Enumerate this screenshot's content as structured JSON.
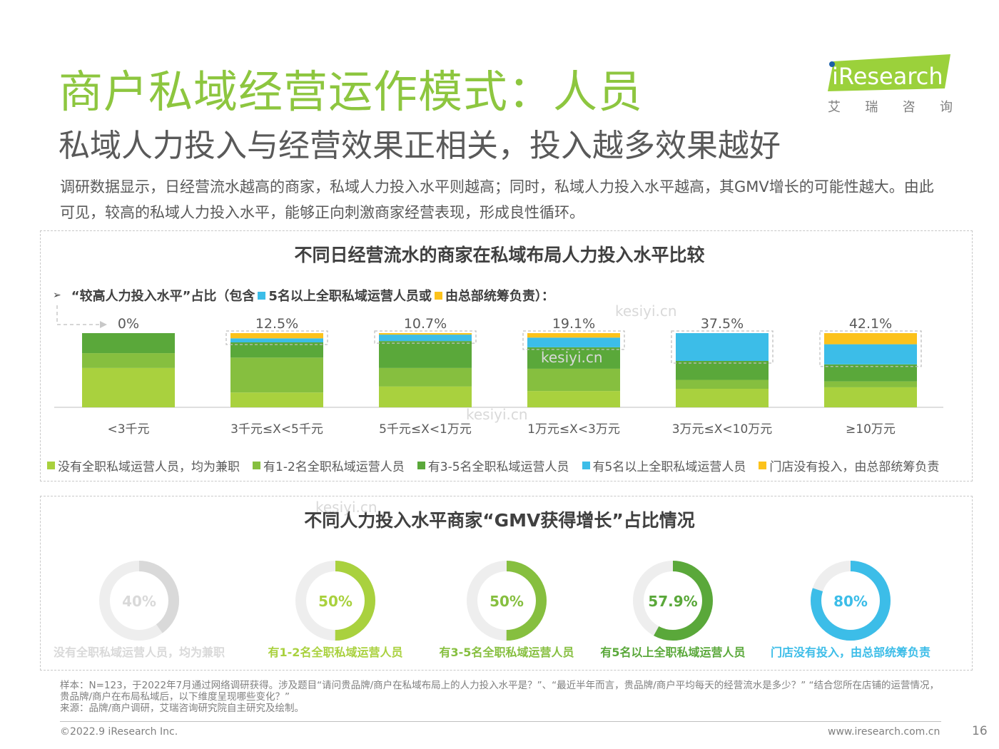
{
  "header": {
    "title": "商户私域经营运作模式：人员",
    "subtitle": "私域人力投入与经营效果正相关，投入越多效果越好",
    "intro": "调研数据显示，日经营流水越高的商家，私域人力投入水平则越高；同时，私域人力投入水平越高，其GMV增长的可能性越大。由此可见，较高的私域人力投入水平，能够正向刺激商家经营表现，形成良性循环。"
  },
  "logo": {
    "brand": "iResearch",
    "cn_chars": [
      "艾",
      "瑞",
      "咨",
      "询"
    ]
  },
  "watermark": "kesiyi.cn",
  "colors": {
    "title_green": "#8dc63f",
    "seg_parttime": "#a9d13e",
    "seg_1_2": "#86bf3f",
    "seg_3_5": "#5aa83a",
    "seg_5plus": "#3cbde8",
    "seg_hq": "#fcc21b",
    "donut_track": "#e6e6e6"
  },
  "chart_data": [
    {
      "type": "bar",
      "stacked": true,
      "normalized": true,
      "title": "不同日经营流水的商家在私域布局人力投入水平比较",
      "annotation": {
        "prefix": "“较高人力投入水平”占比（包含",
        "item1": "5名以上全职私域运营人员或",
        "item2": "由总部统筹负责）："
      },
      "categories": [
        "<3千元",
        "3千元≤X<5千元",
        "5千元≤X<1万元",
        "1万元≤X<3万元",
        "3万元≤X<10万元",
        "≥10万元"
      ],
      "share_labels": [
        "0%",
        "12.5%",
        "10.7%",
        "19.1%",
        "37.5%",
        "42.1%"
      ],
      "highlight_share": [
        0,
        12.5,
        10.7,
        19.1,
        37.5,
        42.1
      ],
      "series": [
        {
          "name": "没有全职私域运营人员，均为兼职",
          "color": "#a9d13e",
          "values": [
            53,
            20,
            28,
            22,
            25,
            27
          ]
        },
        {
          "name": "有1-2名全职私域运营人员",
          "color": "#86bf3f",
          "values": [
            20,
            47,
            25,
            30,
            12,
            8
          ]
        },
        {
          "name": "有3-5名全职私域运营人员",
          "color": "#5aa83a",
          "values": [
            27,
            20.5,
            36.3,
            28.9,
            25.5,
            22.9
          ]
        },
        {
          "name": "有5名以上全职私域运营人员",
          "color": "#3cbde8",
          "values": [
            0,
            5.5,
            8.7,
            13.1,
            37.5,
            27.1
          ]
        },
        {
          "name": "门店没有投入，由总部统筹负责",
          "color": "#fcc21b",
          "values": [
            0,
            7,
            2,
            6,
            0,
            15
          ]
        }
      ],
      "legend_position": "bottom"
    },
    {
      "type": "pie",
      "variant": "donut",
      "title": "不同人力投入水平商家“GMV获得增长”占比情况",
      "categories": [
        "没有全职私域运营人员，均为兼职",
        "有1-2名全职私域运营人员",
        "有3-5名全职私域运营人员",
        "有5名以上全职私域运营人员",
        "门店没有投入，由总部统筹负责"
      ],
      "values": [
        40,
        50,
        50,
        57.9,
        80
      ],
      "labels": [
        "40%",
        "50%",
        "50%",
        "57.9%",
        "80%"
      ],
      "colors": [
        "#d9d9d9",
        "#a9d13e",
        "#86bf3f",
        "#5aa83a",
        "#3cbde8"
      ]
    }
  ],
  "footer": {
    "sample_note": "样本：N=123，于2022年7月通过网络调研获得。涉及题目“请问贵品牌/商户在私域布局上的人力投入水平是？”、“最近半年而言，贵品牌/商户平均每天的经营流水是多少？” “结合您所在店铺的运营情况，贵品牌/商户在布局私域后，以下维度呈现哪些变化？”",
    "source": "来源：品牌/商户调研，艾瑞咨询研究院自主研究及绘制。",
    "copyright": "©2022.9 iResearch Inc.",
    "website": "www.iresearch.com.cn",
    "page": "16"
  }
}
